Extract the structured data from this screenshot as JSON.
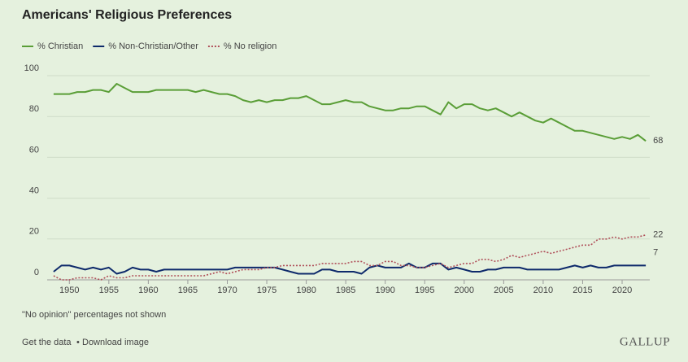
{
  "chart_data": {
    "type": "line",
    "title": "Americans' Religious Preferences",
    "x": [
      1948,
      1949,
      1950,
      1951,
      1952,
      1953,
      1954,
      1955,
      1956,
      1957,
      1958,
      1959,
      1960,
      1961,
      1962,
      1963,
      1964,
      1965,
      1966,
      1967,
      1968,
      1969,
      1970,
      1971,
      1972,
      1973,
      1974,
      1975,
      1976,
      1977,
      1978,
      1979,
      1980,
      1981,
      1982,
      1983,
      1984,
      1985,
      1986,
      1987,
      1988,
      1989,
      1990,
      1991,
      1992,
      1993,
      1994,
      1995,
      1996,
      1997,
      1998,
      1999,
      2000,
      2001,
      2002,
      2003,
      2004,
      2005,
      2006,
      2007,
      2008,
      2009,
      2010,
      2011,
      2012,
      2013,
      2014,
      2015,
      2016,
      2017,
      2018,
      2019,
      2020,
      2021,
      2022,
      2023
    ],
    "series": [
      {
        "name": "% Christian",
        "color": "#5a9e37",
        "style": "solid",
        "values": [
          91,
          91,
          91,
          92,
          92,
          93,
          93,
          92,
          96,
          94,
          92,
          92,
          92,
          93,
          93,
          93,
          93,
          93,
          92,
          93,
          92,
          91,
          91,
          90,
          88,
          87,
          88,
          87,
          88,
          88,
          89,
          89,
          90,
          88,
          86,
          86,
          87,
          88,
          87,
          87,
          85,
          84,
          83,
          83,
          84,
          84,
          85,
          85,
          83,
          81,
          87,
          84,
          86,
          86,
          84,
          83,
          84,
          82,
          80,
          82,
          80,
          78,
          77,
          79,
          77,
          75,
          73,
          73,
          72,
          71,
          70,
          69,
          70,
          69,
          71,
          68
        ]
      },
      {
        "name": "% Non-Christian/Other",
        "color": "#0e2a6b",
        "style": "solid",
        "values": [
          4,
          7,
          7,
          6,
          5,
          6,
          5,
          6,
          3,
          4,
          6,
          5,
          5,
          4,
          5,
          5,
          5,
          5,
          5,
          5,
          5,
          5,
          5,
          6,
          6,
          6,
          6,
          6,
          6,
          5,
          4,
          3,
          3,
          3,
          5,
          5,
          4,
          4,
          4,
          3,
          6,
          7,
          6,
          6,
          6,
          8,
          6,
          6,
          8,
          8,
          5,
          6,
          5,
          4,
          4,
          5,
          5,
          6,
          6,
          6,
          5,
          5,
          5,
          5,
          5,
          6,
          7,
          6,
          7,
          6,
          6,
          7,
          7,
          7,
          7,
          7
        ]
      },
      {
        "name": "% No religion",
        "color": "#b0505a",
        "style": "dotted",
        "values": [
          2,
          0,
          0,
          1,
          1,
          1,
          0,
          2,
          1,
          1,
          2,
          2,
          2,
          2,
          2,
          2,
          2,
          2,
          2,
          2,
          3,
          4,
          3,
          4,
          5,
          5,
          5,
          6,
          6,
          7,
          7,
          7,
          7,
          7,
          8,
          8,
          8,
          8,
          9,
          9,
          7,
          7,
          9,
          9,
          7,
          7,
          6,
          6,
          7,
          8,
          6,
          7,
          8,
          8,
          10,
          10,
          9,
          10,
          12,
          11,
          12,
          13,
          14,
          13,
          14,
          15,
          16,
          17,
          17,
          20,
          20,
          21,
          20,
          21,
          21,
          22
        ]
      }
    ],
    "xlim": [
      1947.5,
      2023.5
    ],
    "xticks": [
      1950,
      1955,
      1960,
      1965,
      1970,
      1975,
      1980,
      1985,
      1990,
      1995,
      2000,
      2005,
      2010,
      2015,
      2020
    ],
    "ylim": [
      0,
      100
    ],
    "yticks": [
      0,
      20,
      40,
      60,
      80,
      100
    ],
    "grid": true,
    "end_labels": true,
    "note": "\"No opinion\" percentages not shown"
  },
  "footer": {
    "get_data": "Get the data",
    "separator": "•",
    "download": "Download image",
    "brand": "GALLUP"
  }
}
